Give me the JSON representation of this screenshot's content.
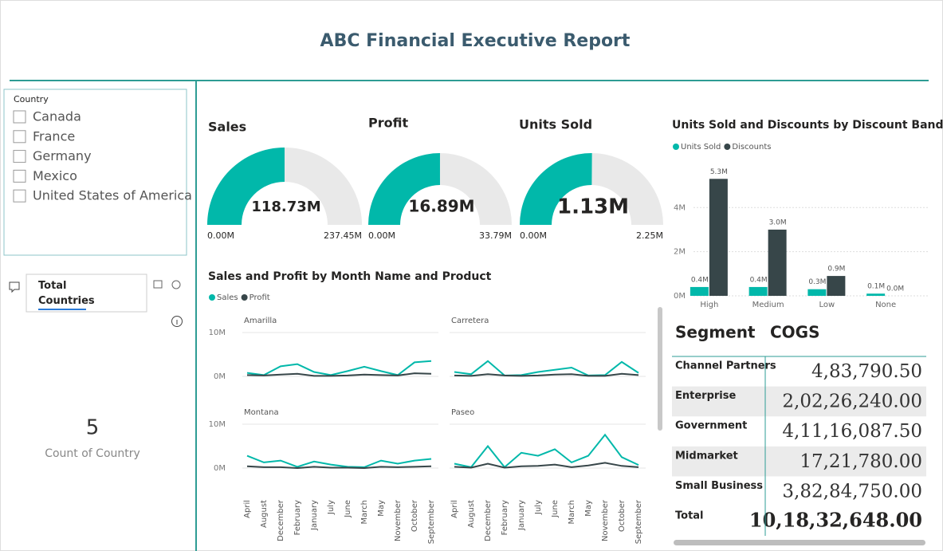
{
  "header": {
    "title": "ABC Financial Executive Report"
  },
  "slicer": {
    "title": "Country",
    "items": [
      "Canada",
      "France",
      "Germany",
      "Mexico",
      "United States of America"
    ]
  },
  "button": {
    "label": "Total Countries"
  },
  "card": {
    "value": 5,
    "label": "Count of Country"
  },
  "chart_data": [
    {
      "type": "gauge",
      "title": "Sales",
      "value": 118.73,
      "value_label": "118.73M",
      "color": "#01B8AA",
      "ylim": [
        0,
        237.45
      ],
      "yticks": [
        {
          "value": 0,
          "label": "0.00M"
        },
        {
          "value": 237.45,
          "label": "237.45M"
        }
      ]
    },
    {
      "type": "gauge",
      "title": "Profit",
      "value": 16.89,
      "value_label": "16.89M",
      "color": "#01B8AA",
      "ylim": [
        0,
        33.79
      ],
      "yticks": [
        {
          "value": 0,
          "label": "0.00M"
        },
        {
          "value": 33.79,
          "label": "33.79M"
        }
      ]
    },
    {
      "type": "gauge",
      "title": "Units Sold",
      "value": 1.13,
      "value_label": "1.13M",
      "color": "#01B8AA",
      "ylim": [
        0,
        2.25
      ],
      "yticks": [
        {
          "value": 0,
          "label": "0.00M"
        },
        {
          "value": 2.25,
          "label": "2.25M"
        }
      ]
    },
    {
      "type": "bar",
      "title": "Units Sold and Discounts by Discount Band",
      "categories": [
        "High",
        "Medium",
        "Low",
        "None"
      ],
      "series": [
        {
          "name": "Units Sold",
          "color": "#01B8AA",
          "values": [
            0.4,
            0.4,
            0.3,
            0.1
          ],
          "value_labels": [
            "0.4M",
            "0.4M",
            "0.3M",
            "0.1M"
          ]
        },
        {
          "name": "Discounts",
          "color": "#374649",
          "values": [
            5.3,
            3.0,
            0.9,
            0.0
          ],
          "value_labels": [
            "5.3M",
            "3.0M",
            "0.9M",
            "0.0M"
          ]
        }
      ],
      "ylim": [
        0,
        5.6
      ],
      "yticks": [
        {
          "value": 0,
          "label": "0M"
        },
        {
          "value": 2,
          "label": "2M"
        },
        {
          "value": 4,
          "label": "4M"
        }
      ],
      "grid": true
    },
    {
      "type": "line",
      "title": "Sales and Profit by Month Name and Product",
      "categories": [
        "April",
        "August",
        "December",
        "February",
        "January",
        "July",
        "June",
        "March",
        "May",
        "November",
        "October",
        "September"
      ],
      "panels": [
        "Amarilla",
        "Carretera",
        "Montana",
        "Paseo"
      ],
      "series": [
        {
          "name": "Sales",
          "color": "#01B8AA",
          "values": [
            [
              0.8,
              0.3,
              2.3,
              2.8,
              1.0,
              0.3,
              1.2,
              2.2,
              1.2,
              0.3,
              3.2,
              3.5
            ],
            [
              1.0,
              0.5,
              3.5,
              0.2,
              0.3,
              1.0,
              1.5,
              2.0,
              0.2,
              0.3,
              3.3,
              0.8
            ],
            [
              2.8,
              1.3,
              1.7,
              0.3,
              1.5,
              0.8,
              0.3,
              0.2,
              1.7,
              1.0,
              1.7,
              2.1
            ],
            [
              1.0,
              0.2,
              5.0,
              0.2,
              3.5,
              2.8,
              4.3,
              1.3,
              2.8,
              7.6,
              2.5,
              0.7
            ]
          ]
        },
        {
          "name": "Profit",
          "color": "#374649",
          "values": [
            [
              0.3,
              0.2,
              0.4,
              0.6,
              0.1,
              0.1,
              0.2,
              0.4,
              0.3,
              0.2,
              0.7,
              0.6
            ],
            [
              0.2,
              0.1,
              0.5,
              0.2,
              0.1,
              0.2,
              0.4,
              0.5,
              0.1,
              0.1,
              0.6,
              0.3
            ],
            [
              0.4,
              0.2,
              0.2,
              0.0,
              0.3,
              0.1,
              0.1,
              0.0,
              0.3,
              0.2,
              0.3,
              0.4
            ],
            [
              0.3,
              0.1,
              1.0,
              0.1,
              0.4,
              0.5,
              0.8,
              0.2,
              0.6,
              1.2,
              0.5,
              0.2
            ]
          ]
        }
      ],
      "ylim": [
        0,
        11
      ],
      "yticks": [
        {
          "value": 0,
          "label": "0M"
        },
        {
          "value": 10,
          "label": "10M"
        }
      ],
      "grid": true
    }
  ],
  "table": {
    "columns": [
      "Segment",
      "COGS"
    ],
    "rows": [
      [
        "Channel Partners",
        "4,83,790.50"
      ],
      [
        "Enterprise",
        "2,02,26,240.00"
      ],
      [
        "Government",
        "4,11,16,087.50"
      ],
      [
        "Midmarket",
        "17,21,780.00"
      ],
      [
        "Small Business",
        "3,82,84,750.00"
      ]
    ],
    "total": [
      "Total",
      "10,18,32,648.00"
    ]
  }
}
